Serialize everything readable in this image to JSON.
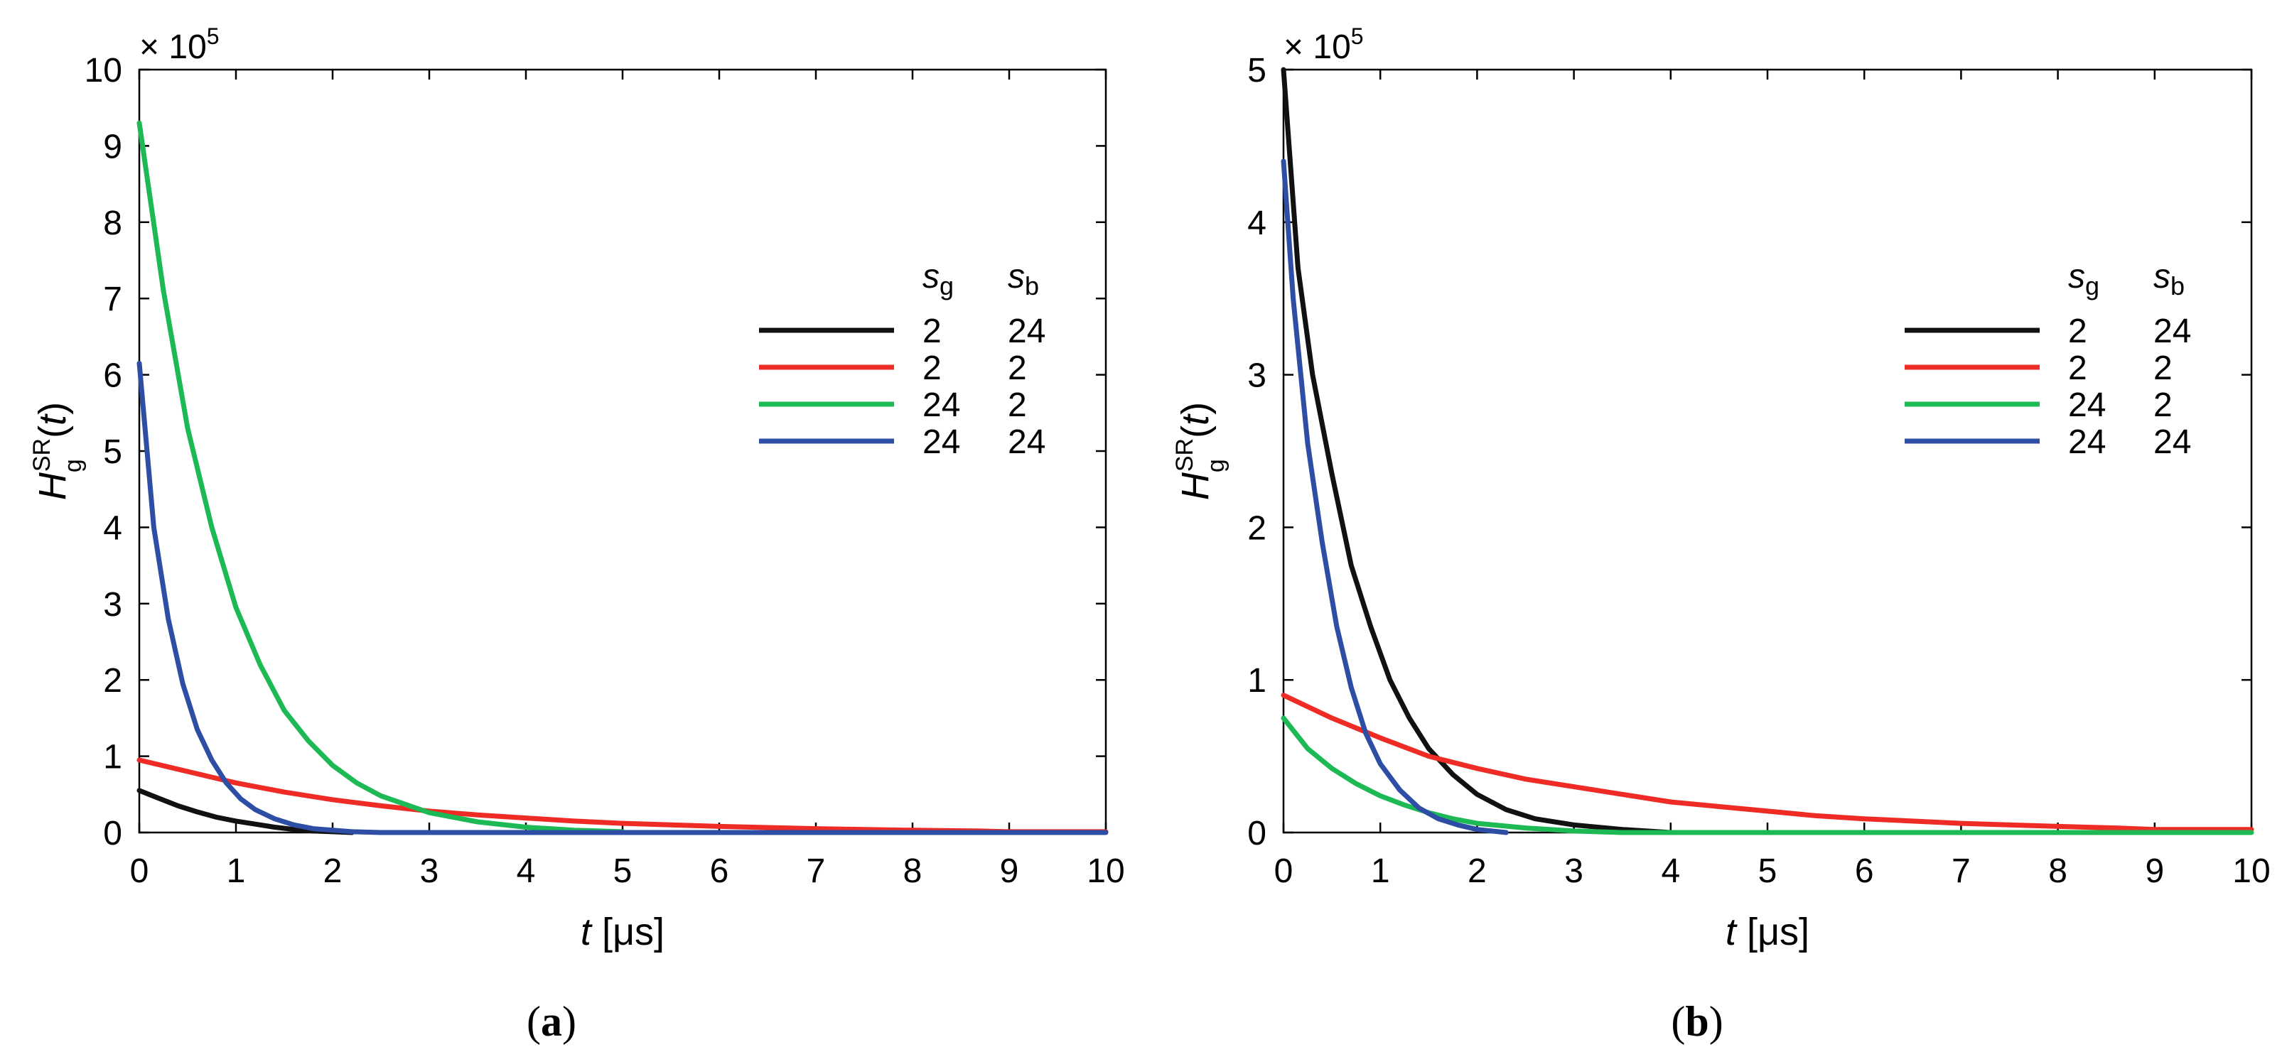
{
  "chart_data": [
    {
      "panel": "(a)",
      "type": "line",
      "xlabel": "t [μs]",
      "ylabel": "H_g^SR(t)",
      "multiplier": "× 10^5",
      "xlim": [
        0,
        10
      ],
      "ylim": [
        0,
        10
      ],
      "xticks": [
        "0",
        "1",
        "2",
        "3",
        "4",
        "5",
        "6",
        "7",
        "8",
        "9",
        "10"
      ],
      "yticks": [
        "0",
        "1",
        "2",
        "3",
        "4",
        "5",
        "6",
        "7",
        "8",
        "9",
        "10"
      ],
      "legend_headers": [
        "s_g",
        "s_b"
      ],
      "series": [
        {
          "name": "2 24",
          "sg": "2",
          "sb": "24",
          "color": "#111111",
          "x": [
            0,
            0.2,
            0.4,
            0.6,
            0.8,
            1,
            1.2,
            1.4,
            1.6,
            1.8,
            2,
            2.2
          ],
          "y": [
            0.55,
            0.45,
            0.35,
            0.27,
            0.2,
            0.15,
            0.11,
            0.07,
            0.04,
            0.02,
            0.01,
            0
          ]
        },
        {
          "name": "2 2",
          "sg": "2",
          "sb": "2",
          "color": "#ee2b24",
          "x": [
            0,
            0.5,
            1,
            1.5,
            2,
            2.5,
            3,
            3.5,
            4,
            4.5,
            5,
            5.5,
            6,
            7,
            8,
            8.7,
            9,
            10
          ],
          "y": [
            0.95,
            0.8,
            0.65,
            0.53,
            0.43,
            0.35,
            0.28,
            0.23,
            0.19,
            0.15,
            0.12,
            0.1,
            0.08,
            0.05,
            0.03,
            0.02,
            0.01,
            0.01
          ]
        },
        {
          "name": "24 2",
          "sg": "24",
          "sb": "2",
          "color": "#1db954",
          "x": [
            0,
            0.25,
            0.5,
            0.75,
            1,
            1.25,
            1.5,
            1.75,
            2,
            2.25,
            2.5,
            3,
            3.5,
            4,
            4.5,
            5
          ],
          "y": [
            9.3,
            7.1,
            5.3,
            4.0,
            2.95,
            2.2,
            1.6,
            1.2,
            0.88,
            0.65,
            0.48,
            0.26,
            0.14,
            0.07,
            0.03,
            0.01
          ]
        },
        {
          "name": "24 24",
          "sg": "24",
          "sb": "24",
          "color": "#2d4ea4",
          "x": [
            0,
            0.15,
            0.3,
            0.45,
            0.6,
            0.75,
            0.9,
            1.05,
            1.2,
            1.4,
            1.6,
            1.8,
            2,
            2.2,
            2.5,
            10
          ],
          "y": [
            6.15,
            4.0,
            2.8,
            1.95,
            1.35,
            0.95,
            0.65,
            0.44,
            0.3,
            0.18,
            0.1,
            0.05,
            0.03,
            0.01,
            0,
            0
          ]
        }
      ]
    },
    {
      "panel": "(b)",
      "type": "line",
      "xlabel": "t [μs]",
      "ylabel": "H_g^SR(t)",
      "multiplier": "× 10^5",
      "xlim": [
        0,
        10
      ],
      "ylim": [
        0,
        5
      ],
      "xticks": [
        "0",
        "1",
        "2",
        "3",
        "4",
        "5",
        "6",
        "7",
        "8",
        "9",
        "10"
      ],
      "yticks": [
        "0",
        "1",
        "2",
        "3",
        "4",
        "5"
      ],
      "legend_headers": [
        "s_g",
        "s_b"
      ],
      "series": [
        {
          "name": "2 24",
          "sg": "2",
          "sb": "24",
          "color": "#111111",
          "x": [
            0,
            0.15,
            0.3,
            0.5,
            0.7,
            0.9,
            1.1,
            1.3,
            1.5,
            1.75,
            2,
            2.3,
            2.6,
            3,
            3.5,
            4
          ],
          "y": [
            5.0,
            3.7,
            3.0,
            2.35,
            1.75,
            1.35,
            1.0,
            0.75,
            0.55,
            0.38,
            0.25,
            0.15,
            0.09,
            0.05,
            0.02,
            0
          ]
        },
        {
          "name": "2 2",
          "sg": "2",
          "sb": "2",
          "color": "#ee2b24",
          "x": [
            0,
            0.5,
            1,
            1.5,
            2,
            2.5,
            3,
            3.5,
            4,
            4.5,
            5,
            5.5,
            6,
            7,
            8,
            8.6,
            9,
            10
          ],
          "y": [
            0.9,
            0.75,
            0.62,
            0.5,
            0.42,
            0.35,
            0.3,
            0.25,
            0.2,
            0.17,
            0.14,
            0.11,
            0.09,
            0.06,
            0.04,
            0.03,
            0.02,
            0.02
          ]
        },
        {
          "name": "24 2",
          "sg": "24",
          "sb": "2",
          "color": "#1db954",
          "x": [
            0,
            0.25,
            0.5,
            0.75,
            1,
            1.25,
            1.5,
            1.75,
            2,
            2.5,
            3,
            3.5,
            10
          ],
          "y": [
            0.75,
            0.55,
            0.42,
            0.32,
            0.24,
            0.18,
            0.13,
            0.09,
            0.06,
            0.03,
            0.01,
            0,
            0
          ]
        },
        {
          "name": "24 24",
          "sg": "24",
          "sb": "24",
          "color": "#2d4ea4",
          "x": [
            0,
            0.1,
            0.25,
            0.4,
            0.55,
            0.7,
            0.85,
            1,
            1.2,
            1.4,
            1.6,
            1.8,
            2,
            2.3
          ],
          "y": [
            4.4,
            3.5,
            2.55,
            1.9,
            1.35,
            0.95,
            0.65,
            0.45,
            0.28,
            0.16,
            0.09,
            0.05,
            0.02,
            0
          ]
        }
      ]
    }
  ]
}
